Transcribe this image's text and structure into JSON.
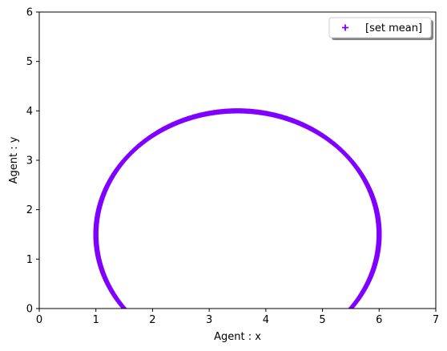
{
  "colors": {
    "series": "#7f00ff",
    "axis": "#000000",
    "background": "#ffffff"
  },
  "chart_data": {
    "type": "scatter",
    "title": "",
    "xlabel": "Agent : x",
    "ylabel": "Agent : y",
    "xlim": [
      0,
      7
    ],
    "ylim": [
      0,
      6
    ],
    "xticks": [
      "0",
      "1",
      "2",
      "3",
      "4",
      "5",
      "6",
      "7"
    ],
    "yticks": [
      "0",
      "1",
      "2",
      "3",
      "4",
      "5",
      "6"
    ],
    "grid": false,
    "legend_position": "top-right",
    "marker": "+",
    "series": [
      {
        "name": "[set mean]",
        "shape": "ellipse",
        "center": [
          3.5,
          1.5
        ],
        "radii": [
          2.5,
          2.5
        ],
        "x": [
          1.54,
          1.4,
          1.25,
          1.13,
          1.05,
          1.0,
          1.01,
          1.07,
          1.18,
          1.33,
          1.52,
          1.75,
          2.0,
          2.27,
          2.56,
          2.86,
          3.18,
          3.5,
          3.82,
          4.14,
          4.44,
          4.73,
          5.0,
          5.25,
          5.48,
          5.67,
          5.82,
          5.93,
          5.99,
          6.0,
          5.95,
          5.87,
          5.75,
          5.6,
          5.46
        ],
        "y": [
          0.0,
          0.2,
          0.5,
          0.8,
          1.1,
          1.5,
          1.9,
          2.2,
          2.5,
          2.8,
          3.05,
          3.28,
          3.5,
          3.68,
          3.82,
          3.92,
          3.98,
          4.0,
          3.98,
          3.92,
          3.82,
          3.68,
          3.5,
          3.28,
          3.05,
          2.8,
          2.5,
          2.2,
          1.9,
          1.5,
          1.1,
          0.8,
          0.5,
          0.2,
          0.0
        ]
      }
    ]
  }
}
